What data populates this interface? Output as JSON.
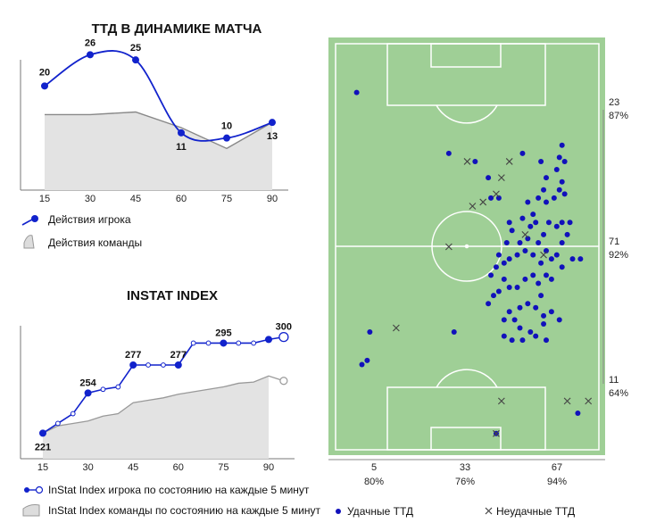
{
  "chart_data": [
    {
      "id": "ttd",
      "type": "line",
      "title": "ТТД В ДИНАМИКЕ МАТЧА",
      "x": [
        15,
        30,
        45,
        60,
        75,
        90
      ],
      "ylim": [
        0,
        30
      ],
      "series": [
        {
          "name": "Действия игрока",
          "values": [
            20,
            26,
            25,
            11,
            10,
            13
          ],
          "color": "#1122cc"
        },
        {
          "name": "Действия команды",
          "values": [
            14.5,
            14.5,
            15,
            12,
            8,
            13
          ],
          "color": "#888888"
        }
      ],
      "value_labels": [
        "20",
        "26",
        "25",
        "11",
        "10",
        "13"
      ]
    },
    {
      "id": "instat",
      "type": "line",
      "title": "INSTAT INDEX",
      "x": [
        15,
        20,
        25,
        30,
        35,
        40,
        45,
        50,
        55,
        60,
        65,
        70,
        75,
        80,
        85,
        90,
        95
      ],
      "x_ticks": [
        15,
        30,
        45,
        60,
        75,
        90
      ],
      "ylim": [
        200,
        310
      ],
      "series": [
        {
          "name": "InStat Index игрока по состоянию на каждые 5 минут",
          "values": [
            221,
            229,
            237,
            254,
            257,
            259,
            277,
            277,
            277,
            277,
            295,
            295,
            295,
            295,
            295,
            298,
            300
          ],
          "color": "#1122cc"
        },
        {
          "name": "InStat Index команды по состоянию на каждые 5 минут",
          "values": [
            221,
            227,
            229,
            231,
            235,
            237,
            246,
            248,
            250,
            253,
            255,
            257,
            259,
            262,
            263,
            268,
            264
          ],
          "color": "#888888"
        }
      ],
      "value_labels": [
        {
          "x": 15,
          "text": "221"
        },
        {
          "x": 30,
          "text": "254"
        },
        {
          "x": 45,
          "text": "277"
        },
        {
          "x": 60,
          "text": "277"
        },
        {
          "x": 75,
          "text": "295"
        },
        {
          "x": 95,
          "text": "300",
          "color": "#cc2222"
        }
      ]
    },
    {
      "id": "pitch",
      "type": "scatter",
      "x_ticks": [
        {
          "value": "5",
          "pct": "80%"
        },
        {
          "value": "33",
          "pct": "76%"
        },
        {
          "value": "67",
          "pct": "94%"
        }
      ],
      "y_labels": [
        {
          "value": "23",
          "pct": "87%"
        },
        {
          "value": "71",
          "pct": "92%"
        },
        {
          "value": "11",
          "pct": "64%"
        }
      ],
      "legend": [
        {
          "name": "Удачные ТТД",
          "marker": "dot",
          "color": "#1111bb"
        },
        {
          "name": "Неудачные ТТД",
          "marker": "cross",
          "color": "#444444"
        }
      ],
      "successful": [
        [
          8,
          12
        ],
        [
          43,
          27
        ],
        [
          53,
          29
        ],
        [
          58,
          33
        ],
        [
          59,
          38
        ],
        [
          62,
          38
        ],
        [
          71,
          27
        ],
        [
          78,
          29
        ],
        [
          86,
          25
        ],
        [
          85,
          28
        ],
        [
          87,
          29
        ],
        [
          84,
          31
        ],
        [
          86,
          34
        ],
        [
          85,
          36
        ],
        [
          83,
          38
        ],
        [
          87,
          37
        ],
        [
          80,
          33
        ],
        [
          79,
          36
        ],
        [
          80,
          39
        ],
        [
          77,
          38
        ],
        [
          73,
          39
        ],
        [
          75,
          42
        ],
        [
          76,
          44
        ],
        [
          74,
          45
        ],
        [
          71,
          43
        ],
        [
          66,
          44
        ],
        [
          67,
          46
        ],
        [
          65,
          49
        ],
        [
          70,
          49
        ],
        [
          73,
          48
        ],
        [
          77,
          49
        ],
        [
          79,
          47
        ],
        [
          81,
          44
        ],
        [
          84,
          45
        ],
        [
          86,
          44
        ],
        [
          89,
          44
        ],
        [
          88,
          47
        ],
        [
          86,
          49
        ],
        [
          84,
          52
        ],
        [
          82,
          53
        ],
        [
          80,
          51
        ],
        [
          78,
          54
        ],
        [
          75,
          52
        ],
        [
          72,
          51
        ],
        [
          69,
          52
        ],
        [
          66,
          53
        ],
        [
          64,
          54
        ],
        [
          62,
          52
        ],
        [
          61,
          55
        ],
        [
          64,
          58
        ],
        [
          62,
          61
        ],
        [
          60,
          62
        ],
        [
          58,
          64
        ],
        [
          59,
          57
        ],
        [
          66,
          60
        ],
        [
          69,
          60
        ],
        [
          72,
          58
        ],
        [
          75,
          57
        ],
        [
          77,
          59
        ],
        [
          80,
          57
        ],
        [
          82,
          58
        ],
        [
          86,
          55
        ],
        [
          90,
          53
        ],
        [
          93,
          53
        ],
        [
          78,
          62
        ],
        [
          76,
          65
        ],
        [
          79,
          67
        ],
        [
          73,
          64
        ],
        [
          70,
          65
        ],
        [
          66,
          66
        ],
        [
          64,
          68
        ],
        [
          68,
          68
        ],
        [
          70,
          70
        ],
        [
          74,
          71
        ],
        [
          76,
          72
        ],
        [
          79,
          69
        ],
        [
          82,
          66
        ],
        [
          85,
          68
        ],
        [
          80,
          73
        ],
        [
          67,
          73
        ],
        [
          64,
          72
        ],
        [
          71,
          73
        ],
        [
          13,
          71
        ],
        [
          45,
          71
        ],
        [
          12,
          78
        ],
        [
          10,
          79
        ],
        [
          92,
          91
        ],
        [
          61,
          96
        ]
      ],
      "unsuccessful": [
        [
          50,
          29
        ],
        [
          66,
          29
        ],
        [
          63,
          33
        ],
        [
          61,
          37
        ],
        [
          56,
          39
        ],
        [
          52,
          40
        ],
        [
          72,
          47
        ],
        [
          43,
          50
        ],
        [
          79,
          52
        ],
        [
          23,
          70
        ],
        [
          63,
          88
        ],
        [
          88,
          88
        ],
        [
          96,
          88
        ],
        [
          61,
          96
        ]
      ]
    }
  ]
}
